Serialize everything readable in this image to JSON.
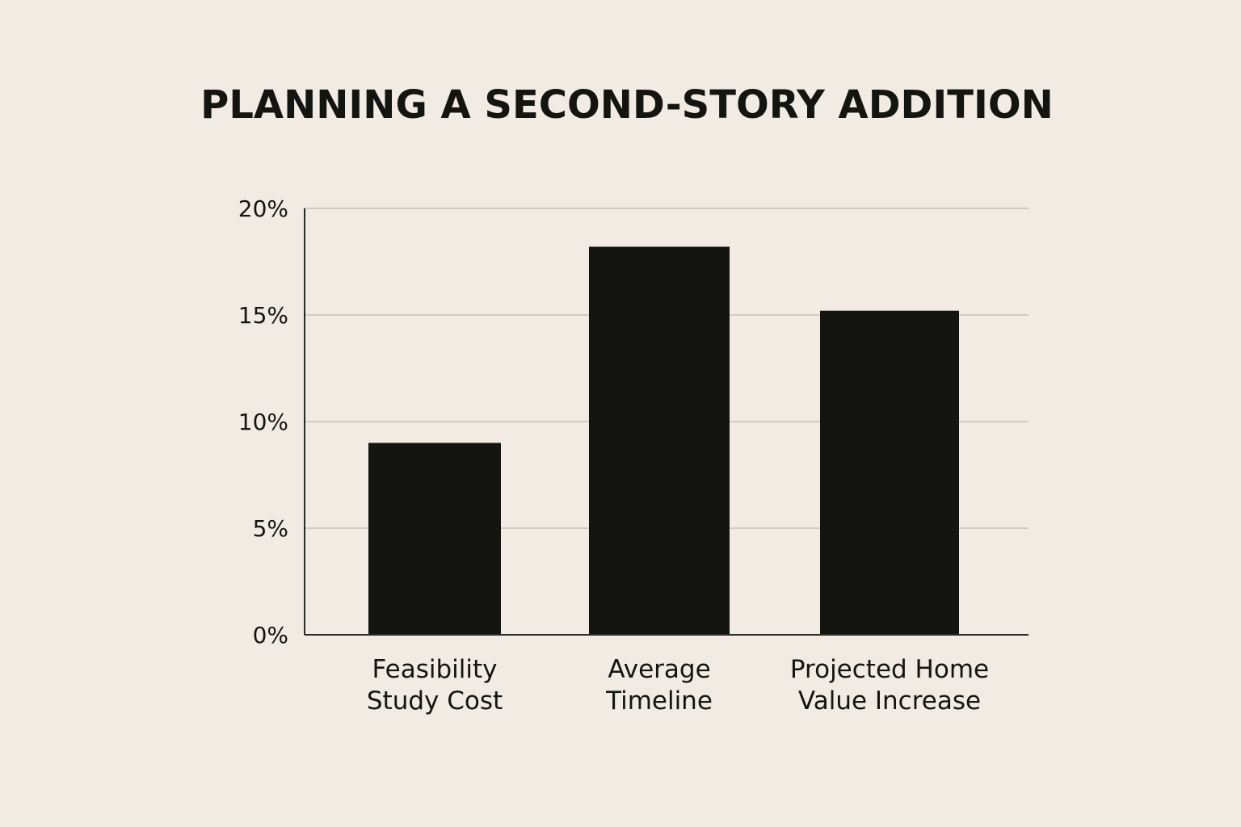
{
  "chart_data": {
    "type": "bar",
    "title": "PLANNING A SECOND-STORY ADDITION",
    "xlabel": "",
    "ylabel": "",
    "categories": [
      [
        "Feasibility",
        "Study Cost"
      ],
      [
        "Average",
        "Timeline"
      ],
      [
        "Projected Home",
        "Value Increase"
      ]
    ],
    "values": [
      9,
      18.2,
      15.2
    ],
    "ylim": [
      0,
      20
    ],
    "yticks": [
      0,
      5,
      10,
      15,
      20
    ],
    "ytick_labels": [
      "0%",
      "5%",
      "10%",
      "15%",
      "20%"
    ],
    "grid": true,
    "legend": "none",
    "colors": {
      "background": "#f1ebe3",
      "bar": "#141411",
      "grid": "#c8c0b6",
      "text": "#141411"
    }
  }
}
